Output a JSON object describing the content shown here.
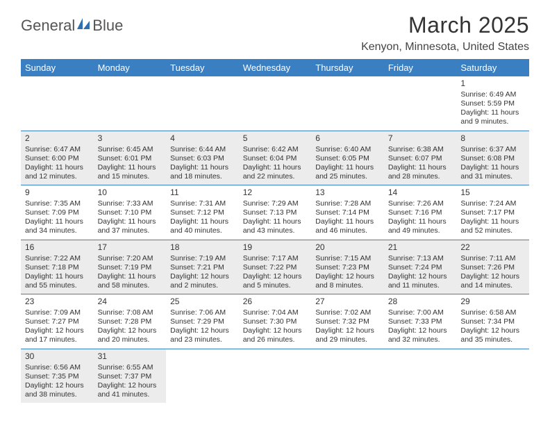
{
  "brand": {
    "part1": "General",
    "part2": "Blue",
    "logo_color": "#2f6fb0"
  },
  "title": {
    "month": "March 2025",
    "location": "Kenyon, Minnesota, United States"
  },
  "colors": {
    "header_bg": "#3a7fc2",
    "header_text": "#ffffff",
    "shade": "#ececec",
    "rule": "#3a7fc2"
  },
  "day_headers": [
    "Sunday",
    "Monday",
    "Tuesday",
    "Wednesday",
    "Thursday",
    "Friday",
    "Saturday"
  ],
  "weeks": [
    [
      null,
      null,
      null,
      null,
      null,
      null,
      {
        "n": "1",
        "sunrise": "Sunrise: 6:49 AM",
        "sunset": "Sunset: 5:59 PM",
        "daylight": "Daylight: 11 hours and 9 minutes."
      }
    ],
    [
      {
        "n": "2",
        "sunrise": "Sunrise: 6:47 AM",
        "sunset": "Sunset: 6:00 PM",
        "daylight": "Daylight: 11 hours and 12 minutes."
      },
      {
        "n": "3",
        "sunrise": "Sunrise: 6:45 AM",
        "sunset": "Sunset: 6:01 PM",
        "daylight": "Daylight: 11 hours and 15 minutes."
      },
      {
        "n": "4",
        "sunrise": "Sunrise: 6:44 AM",
        "sunset": "Sunset: 6:03 PM",
        "daylight": "Daylight: 11 hours and 18 minutes."
      },
      {
        "n": "5",
        "sunrise": "Sunrise: 6:42 AM",
        "sunset": "Sunset: 6:04 PM",
        "daylight": "Daylight: 11 hours and 22 minutes."
      },
      {
        "n": "6",
        "sunrise": "Sunrise: 6:40 AM",
        "sunset": "Sunset: 6:05 PM",
        "daylight": "Daylight: 11 hours and 25 minutes."
      },
      {
        "n": "7",
        "sunrise": "Sunrise: 6:38 AM",
        "sunset": "Sunset: 6:07 PM",
        "daylight": "Daylight: 11 hours and 28 minutes."
      },
      {
        "n": "8",
        "sunrise": "Sunrise: 6:37 AM",
        "sunset": "Sunset: 6:08 PM",
        "daylight": "Daylight: 11 hours and 31 minutes."
      }
    ],
    [
      {
        "n": "9",
        "sunrise": "Sunrise: 7:35 AM",
        "sunset": "Sunset: 7:09 PM",
        "daylight": "Daylight: 11 hours and 34 minutes."
      },
      {
        "n": "10",
        "sunrise": "Sunrise: 7:33 AM",
        "sunset": "Sunset: 7:10 PM",
        "daylight": "Daylight: 11 hours and 37 minutes."
      },
      {
        "n": "11",
        "sunrise": "Sunrise: 7:31 AM",
        "sunset": "Sunset: 7:12 PM",
        "daylight": "Daylight: 11 hours and 40 minutes."
      },
      {
        "n": "12",
        "sunrise": "Sunrise: 7:29 AM",
        "sunset": "Sunset: 7:13 PM",
        "daylight": "Daylight: 11 hours and 43 minutes."
      },
      {
        "n": "13",
        "sunrise": "Sunrise: 7:28 AM",
        "sunset": "Sunset: 7:14 PM",
        "daylight": "Daylight: 11 hours and 46 minutes."
      },
      {
        "n": "14",
        "sunrise": "Sunrise: 7:26 AM",
        "sunset": "Sunset: 7:16 PM",
        "daylight": "Daylight: 11 hours and 49 minutes."
      },
      {
        "n": "15",
        "sunrise": "Sunrise: 7:24 AM",
        "sunset": "Sunset: 7:17 PM",
        "daylight": "Daylight: 11 hours and 52 minutes."
      }
    ],
    [
      {
        "n": "16",
        "sunrise": "Sunrise: 7:22 AM",
        "sunset": "Sunset: 7:18 PM",
        "daylight": "Daylight: 11 hours and 55 minutes."
      },
      {
        "n": "17",
        "sunrise": "Sunrise: 7:20 AM",
        "sunset": "Sunset: 7:19 PM",
        "daylight": "Daylight: 11 hours and 58 minutes."
      },
      {
        "n": "18",
        "sunrise": "Sunrise: 7:19 AM",
        "sunset": "Sunset: 7:21 PM",
        "daylight": "Daylight: 12 hours and 2 minutes."
      },
      {
        "n": "19",
        "sunrise": "Sunrise: 7:17 AM",
        "sunset": "Sunset: 7:22 PM",
        "daylight": "Daylight: 12 hours and 5 minutes."
      },
      {
        "n": "20",
        "sunrise": "Sunrise: 7:15 AM",
        "sunset": "Sunset: 7:23 PM",
        "daylight": "Daylight: 12 hours and 8 minutes."
      },
      {
        "n": "21",
        "sunrise": "Sunrise: 7:13 AM",
        "sunset": "Sunset: 7:24 PM",
        "daylight": "Daylight: 12 hours and 11 minutes."
      },
      {
        "n": "22",
        "sunrise": "Sunrise: 7:11 AM",
        "sunset": "Sunset: 7:26 PM",
        "daylight": "Daylight: 12 hours and 14 minutes."
      }
    ],
    [
      {
        "n": "23",
        "sunrise": "Sunrise: 7:09 AM",
        "sunset": "Sunset: 7:27 PM",
        "daylight": "Daylight: 12 hours and 17 minutes."
      },
      {
        "n": "24",
        "sunrise": "Sunrise: 7:08 AM",
        "sunset": "Sunset: 7:28 PM",
        "daylight": "Daylight: 12 hours and 20 minutes."
      },
      {
        "n": "25",
        "sunrise": "Sunrise: 7:06 AM",
        "sunset": "Sunset: 7:29 PM",
        "daylight": "Daylight: 12 hours and 23 minutes."
      },
      {
        "n": "26",
        "sunrise": "Sunrise: 7:04 AM",
        "sunset": "Sunset: 7:30 PM",
        "daylight": "Daylight: 12 hours and 26 minutes."
      },
      {
        "n": "27",
        "sunrise": "Sunrise: 7:02 AM",
        "sunset": "Sunset: 7:32 PM",
        "daylight": "Daylight: 12 hours and 29 minutes."
      },
      {
        "n": "28",
        "sunrise": "Sunrise: 7:00 AM",
        "sunset": "Sunset: 7:33 PM",
        "daylight": "Daylight: 12 hours and 32 minutes."
      },
      {
        "n": "29",
        "sunrise": "Sunrise: 6:58 AM",
        "sunset": "Sunset: 7:34 PM",
        "daylight": "Daylight: 12 hours and 35 minutes."
      }
    ],
    [
      {
        "n": "30",
        "sunrise": "Sunrise: 6:56 AM",
        "sunset": "Sunset: 7:35 PM",
        "daylight": "Daylight: 12 hours and 38 minutes."
      },
      {
        "n": "31",
        "sunrise": "Sunrise: 6:55 AM",
        "sunset": "Sunset: 7:37 PM",
        "daylight": "Daylight: 12 hours and 41 minutes."
      },
      null,
      null,
      null,
      null,
      null
    ]
  ],
  "shaded_rows": [
    1,
    3,
    5
  ]
}
